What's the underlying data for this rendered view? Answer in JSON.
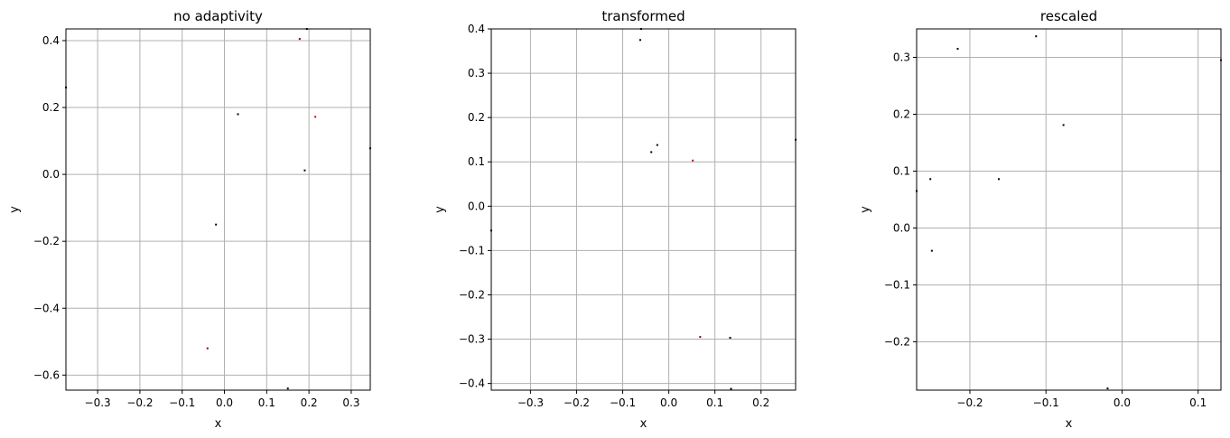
{
  "chart_data": [
    {
      "type": "scatter",
      "title": "no adaptivity",
      "xlabel": "x",
      "ylabel": "y",
      "xlim": [
        -0.375,
        0.345
      ],
      "ylim": [
        -0.645,
        0.435
      ],
      "xticks": [
        -0.3,
        -0.2,
        -0.1,
        0.0,
        0.1,
        0.2,
        0.3
      ],
      "xtick_labels": [
        "−0.3",
        "−0.2",
        "−0.1",
        "0.0",
        "0.1",
        "0.2",
        "0.3"
      ],
      "yticks": [
        -0.6,
        -0.4,
        -0.2,
        0.0,
        0.2,
        0.4
      ],
      "ytick_labels": [
        "−0.6",
        "−0.4",
        "−0.2",
        "0.0",
        "0.2",
        "0.4"
      ],
      "grid": true,
      "points": [
        {
          "x": -0.375,
          "y": 0.26,
          "color": "#000000"
        },
        {
          "x": 0.178,
          "y": 0.405,
          "color": "#8b0000"
        },
        {
          "x": 0.195,
          "y": 0.435,
          "color": "#000000"
        },
        {
          "x": 0.032,
          "y": 0.18,
          "color": "#000000"
        },
        {
          "x": 0.215,
          "y": 0.172,
          "color": "#cc0000"
        },
        {
          "x": 0.345,
          "y": 0.078,
          "color": "#000000"
        },
        {
          "x": 0.19,
          "y": 0.012,
          "color": "#000000"
        },
        {
          "x": -0.02,
          "y": -0.15,
          "color": "#000000"
        },
        {
          "x": -0.04,
          "y": -0.52,
          "color": "#8b0000"
        },
        {
          "x": 0.15,
          "y": -0.64,
          "color": "#000000"
        }
      ]
    },
    {
      "type": "scatter",
      "title": "transformed",
      "xlabel": "x",
      "ylabel": "y",
      "xlim": [
        -0.385,
        0.275
      ],
      "ylim": [
        -0.415,
        0.4
      ],
      "xticks": [
        -0.3,
        -0.2,
        -0.1,
        0.0,
        0.1,
        0.2
      ],
      "xtick_labels": [
        "−0.3",
        "−0.2",
        "−0.1",
        "0.0",
        "0.1",
        "0.2"
      ],
      "yticks": [
        -0.4,
        -0.3,
        -0.2,
        -0.1,
        0.0,
        0.1,
        0.2,
        0.3,
        0.4
      ],
      "ytick_labels": [
        "−0.4",
        "−0.3",
        "−0.2",
        "−0.1",
        "0.0",
        "0.1",
        "0.2",
        "0.3",
        "0.4"
      ],
      "grid": true,
      "points": [
        {
          "x": -0.06,
          "y": 0.4,
          "color": "#000000"
        },
        {
          "x": -0.062,
          "y": 0.375,
          "color": "#000000"
        },
        {
          "x": -0.025,
          "y": 0.138,
          "color": "#000000"
        },
        {
          "x": -0.038,
          "y": 0.122,
          "color": "#000000"
        },
        {
          "x": 0.052,
          "y": 0.103,
          "color": "#cc0000"
        },
        {
          "x": 0.275,
          "y": 0.15,
          "color": "#000000"
        },
        {
          "x": -0.385,
          "y": -0.055,
          "color": "#000000"
        },
        {
          "x": 0.068,
          "y": -0.295,
          "color": "#8b0000"
        },
        {
          "x": 0.133,
          "y": -0.297,
          "color": "#000000"
        },
        {
          "x": 0.135,
          "y": -0.412,
          "color": "#000000"
        }
      ]
    },
    {
      "type": "scatter",
      "title": "rescaled",
      "xlabel": "x",
      "ylabel": "y",
      "xlim": [
        -0.27,
        0.13
      ],
      "ylim": [
        -0.285,
        0.35
      ],
      "xticks": [
        -0.2,
        -0.1,
        0.0,
        0.1
      ],
      "xtick_labels": [
        "−0.2",
        "−0.1",
        "0.0",
        "0.1"
      ],
      "yticks": [
        -0.2,
        -0.1,
        0.0,
        0.1,
        0.2,
        0.3
      ],
      "ytick_labels": [
        "−0.2",
        "−0.1",
        "0.0",
        "0.1",
        "0.2",
        "0.3"
      ],
      "grid": true,
      "points": [
        {
          "x": -0.113,
          "y": 0.337,
          "color": "#000000"
        },
        {
          "x": -0.216,
          "y": 0.315,
          "color": "#000000"
        },
        {
          "x": 0.13,
          "y": 0.295,
          "color": "#8b0000"
        },
        {
          "x": -0.077,
          "y": 0.181,
          "color": "#000000"
        },
        {
          "x": -0.252,
          "y": 0.086,
          "color": "#000000"
        },
        {
          "x": -0.162,
          "y": 0.086,
          "color": "#000000"
        },
        {
          "x": -0.27,
          "y": 0.065,
          "color": "#000000"
        },
        {
          "x": -0.25,
          "y": -0.04,
          "color": "#000000"
        },
        {
          "x": -0.019,
          "y": -0.282,
          "color": "#000000"
        }
      ]
    }
  ]
}
